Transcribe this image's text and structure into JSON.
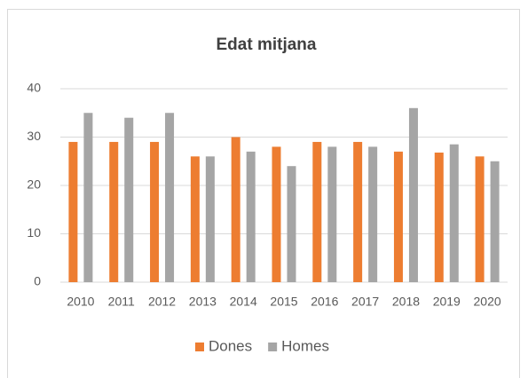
{
  "chart_data": {
    "type": "bar",
    "title": "Edat mitjana",
    "categories": [
      "2010",
      "2011",
      "2012",
      "2013",
      "2014",
      "2015",
      "2016",
      "2017",
      "2018",
      "2019",
      "2020"
    ],
    "series": [
      {
        "name": "Dones",
        "color": "#ed7d31",
        "values": [
          29,
          29,
          29,
          26,
          30,
          28,
          29,
          29,
          27,
          26.8,
          26
        ]
      },
      {
        "name": "Homes",
        "color": "#a5a5a5",
        "values": [
          35,
          34,
          35,
          26,
          27,
          24,
          28,
          28,
          36,
          28.5,
          25
        ]
      }
    ],
    "ylim": [
      0,
      40
    ],
    "yticks": [
      0,
      10,
      20,
      30,
      40
    ],
    "grid": true,
    "legend": "bottom"
  }
}
